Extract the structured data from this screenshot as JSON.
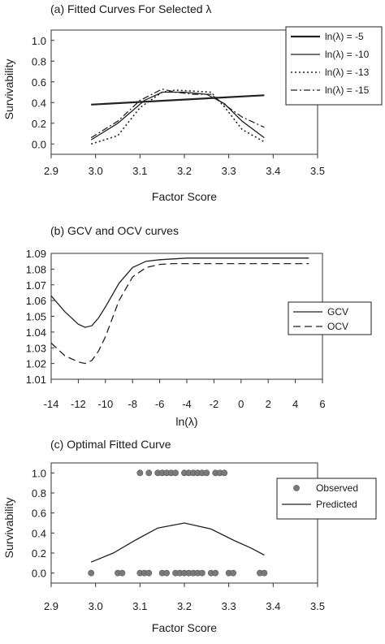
{
  "chart_data": [
    {
      "type": "line",
      "title": "(a)  Fitted Curves For Selected λ",
      "xlabel": "Factor Score",
      "ylabel": "Survivability",
      "xlim": [
        2.9,
        3.5
      ],
      "ylim": [
        -0.1,
        1.1
      ],
      "x_ticks": [
        "2.9",
        "3.0",
        "3.1",
        "3.2",
        "3.3",
        "3.4",
        "3.5"
      ],
      "y_ticks": [
        "0.0",
        "0.2",
        "0.4",
        "0.6",
        "0.8",
        "1.0"
      ],
      "legend_position": "top-right",
      "series": [
        {
          "name": "ln(λ) = -5",
          "style": "solid-thick",
          "x": [
            2.99,
            3.38
          ],
          "y": [
            0.38,
            0.47
          ]
        },
        {
          "name": "ln(λ) = -10",
          "style": "solid",
          "x": [
            2.99,
            3.05,
            3.11,
            3.15,
            3.2,
            3.25,
            3.29,
            3.33,
            3.38
          ],
          "y": [
            0.04,
            0.2,
            0.42,
            0.5,
            0.5,
            0.48,
            0.39,
            0.22,
            0.06
          ]
        },
        {
          "name": "ln(λ) = -13",
          "style": "dotted",
          "x": [
            2.99,
            3.05,
            3.1,
            3.15,
            3.18,
            3.22,
            3.26,
            3.29,
            3.33,
            3.38
          ],
          "y": [
            0.0,
            0.08,
            0.35,
            0.5,
            0.52,
            0.51,
            0.5,
            0.36,
            0.14,
            0.02
          ]
        },
        {
          "name": "ln(λ) = -15",
          "style": "dashdot",
          "x": [
            2.99,
            3.05,
            3.1,
            3.15,
            3.18,
            3.22,
            3.26,
            3.29,
            3.33,
            3.38
          ],
          "y": [
            0.06,
            0.22,
            0.42,
            0.53,
            0.5,
            0.48,
            0.48,
            0.38,
            0.26,
            0.16
          ]
        }
      ]
    },
    {
      "type": "line",
      "title": "(b)  GCV and OCV curves",
      "xlabel": "ln(λ)",
      "ylabel": "",
      "xlim": [
        -14,
        6
      ],
      "ylim": [
        1.01,
        1.09
      ],
      "x_ticks": [
        "-14",
        "-12",
        "-10",
        "-8",
        "-6",
        "-4",
        "-2",
        "0",
        "2",
        "4",
        "6"
      ],
      "y_ticks": [
        "1.01",
        "1.02",
        "1.03",
        "1.04",
        "1.05",
        "1.06",
        "1.07",
        "1.08",
        "1.09"
      ],
      "legend_position": "right",
      "series": [
        {
          "name": "GCV",
          "style": "solid",
          "x": [
            -14,
            -13,
            -12,
            -11.5,
            -11,
            -10.5,
            -10,
            -9,
            -8,
            -7,
            -6,
            -5,
            -4,
            5
          ],
          "y": [
            1.063,
            1.053,
            1.045,
            1.043,
            1.044,
            1.049,
            1.056,
            1.071,
            1.081,
            1.085,
            1.086,
            1.0865,
            1.087,
            1.087
          ]
        },
        {
          "name": "OCV",
          "style": "dashed",
          "x": [
            -14,
            -13,
            -12,
            -11.5,
            -11,
            -10.5,
            -10,
            -9,
            -8,
            -7,
            -6,
            -5,
            5
          ],
          "y": [
            1.033,
            1.025,
            1.021,
            1.02,
            1.022,
            1.028,
            1.037,
            1.06,
            1.075,
            1.081,
            1.083,
            1.0835,
            1.0835
          ]
        }
      ]
    },
    {
      "type": "scatter",
      "title": "(c)  Optimal Fitted Curve",
      "xlabel": "Factor Score",
      "ylabel": "Survivability",
      "xlim": [
        2.9,
        3.5
      ],
      "ylim": [
        -0.1,
        1.1
      ],
      "x_ticks": [
        "2.9",
        "3.0",
        "3.1",
        "3.2",
        "3.3",
        "3.4",
        "3.5"
      ],
      "y_ticks": [
        "0.0",
        "0.2",
        "0.4",
        "0.6",
        "0.8",
        "1.0"
      ],
      "legend_position": "top-right",
      "series": [
        {
          "name": "Observed",
          "style": "points",
          "x": [
            3.1,
            3.12,
            3.14,
            3.15,
            3.16,
            3.17,
            3.18,
            3.2,
            3.21,
            3.22,
            3.23,
            3.24,
            3.25,
            3.27,
            3.28,
            3.29,
            2.99,
            3.05,
            3.06,
            3.1,
            3.11,
            3.12,
            3.15,
            3.16,
            3.18,
            3.19,
            3.2,
            3.21,
            3.22,
            3.23,
            3.24,
            3.26,
            3.27,
            3.3,
            3.31,
            3.37,
            3.38
          ],
          "y": [
            1,
            1,
            1,
            1,
            1,
            1,
            1,
            1,
            1,
            1,
            1,
            1,
            1,
            1,
            1,
            1,
            0,
            0,
            0,
            0,
            0,
            0,
            0,
            0,
            0,
            0,
            0,
            0,
            0,
            0,
            0,
            0,
            0,
            0,
            0,
            0,
            0
          ]
        },
        {
          "name": "Predicted",
          "style": "solid",
          "x": [
            2.99,
            3.04,
            3.09,
            3.14,
            3.2,
            3.26,
            3.31,
            3.35,
            3.38
          ],
          "y": [
            0.11,
            0.2,
            0.33,
            0.45,
            0.5,
            0.44,
            0.33,
            0.25,
            0.18
          ]
        }
      ]
    }
  ]
}
